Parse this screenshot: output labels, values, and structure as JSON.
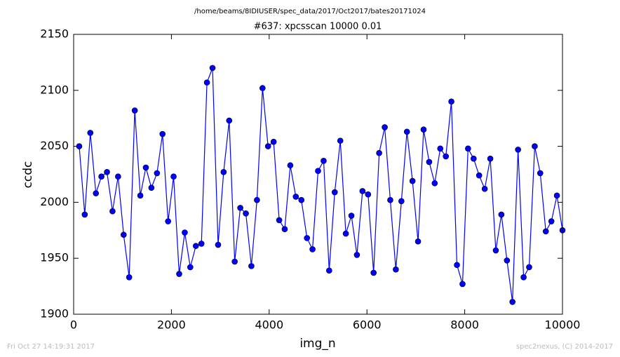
{
  "header": "/home/beams/8IDIUSER/spec_data/2017/Oct2017/bates20171024",
  "footer_left": "Fri Oct 27 14:19:31 2017",
  "footer_right": "spec2nexus, (C) 2014-2017",
  "chart_data": {
    "type": "line",
    "title": "#637: xpcsscan 10000 0.01",
    "xlabel": "img_n",
    "ylabel": "ccdc",
    "color": "#0000ff",
    "markers": true,
    "xlim": [
      0,
      10000
    ],
    "xticks": [
      0,
      2000,
      4000,
      6000,
      8000,
      10000
    ],
    "ylim": [
      1900,
      2150
    ],
    "yticks": [
      1900,
      1950,
      2000,
      2050,
      2100,
      2150
    ],
    "x": [
      114,
      227,
      341,
      455,
      568,
      682,
      795,
      909,
      1023,
      1136,
      1250,
      1364,
      1477,
      1591,
      1705,
      1818,
      1932,
      2045,
      2159,
      2273,
      2386,
      2500,
      2614,
      2727,
      2841,
      2955,
      3068,
      3182,
      3295,
      3409,
      3523,
      3636,
      3750,
      3864,
      3977,
      4091,
      4205,
      4318,
      4432,
      4545,
      4659,
      4773,
      4886,
      5000,
      5114,
      5227,
      5341,
      5455,
      5568,
      5682,
      5795,
      5909,
      6023,
      6136,
      6250,
      6364,
      6477,
      6591,
      6705,
      6818,
      6932,
      7045,
      7159,
      7273,
      7386,
      7500,
      7614,
      7727,
      7841,
      7955,
      8068,
      8182,
      8295,
      8409,
      8523,
      8636,
      8750,
      8864,
      8977,
      9091,
      9205,
      9318,
      9432,
      9545,
      9659,
      9773,
      9886,
      10000
    ],
    "values": [
      2050,
      1989,
      2062,
      2008,
      2023,
      2027,
      1992,
      2023,
      1971,
      1933,
      2082,
      2006,
      2031,
      2013,
      2026,
      2061,
      1983,
      2023,
      1936,
      1973,
      1942,
      1961,
      1963,
      2107,
      2120,
      1962,
      2027,
      2073,
      1947,
      1995,
      1990,
      1943,
      2002,
      2102,
      2050,
      2054,
      1984,
      1976,
      2033,
      2005,
      2002,
      1968,
      1958,
      2028,
      2037,
      1939,
      2009,
      2055,
      1972,
      1988,
      1953,
      2010,
      2007,
      1937,
      2044,
      2067,
      2002,
      1940,
      2001,
      2063,
      2019,
      1965,
      2065,
      2036,
      2017,
      2048,
      2041,
      2090,
      1944,
      1927,
      2048,
      2039,
      2024,
      2012,
      2039,
      1957,
      1989,
      1948,
      1911,
      2047,
      1933,
      1942,
      2050,
      2026,
      1974,
      1983,
      2006,
      1975
    ]
  }
}
